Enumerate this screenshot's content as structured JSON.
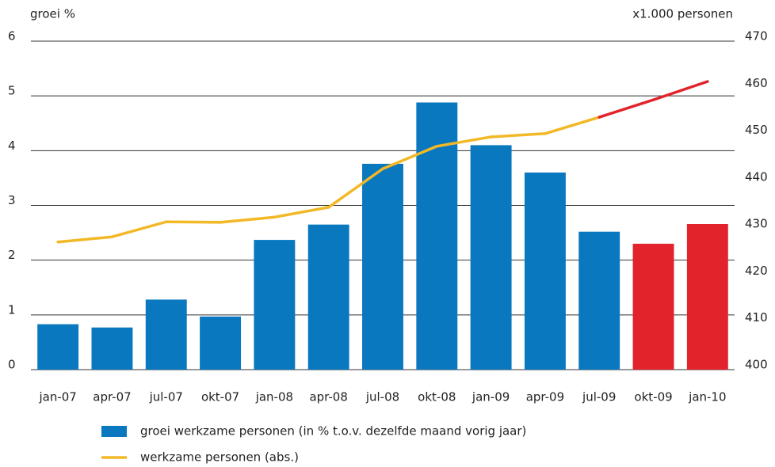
{
  "chart_data": {
    "type": "bar-line",
    "ylabel": "groei %",
    "y2label": "x1.000 personen",
    "categories": [
      "jan-07",
      "apr-07",
      "jul-07",
      "okt-07",
      "jan-08",
      "apr-08",
      "jul-08",
      "okt-08",
      "jan-09",
      "apr-09",
      "jul-09",
      "okt-09",
      "jan-10"
    ],
    "series": [
      {
        "name": "groei werkzame personen (in % t.o.v. dezelfde maand vorig jaar)",
        "type": "bar",
        "color": "#0a78be",
        "colors": [
          "#0a78be",
          "#0a78be",
          "#0a78be",
          "#0a78be",
          "#0a78be",
          "#0a78be",
          "#0a78be",
          "#0a78be",
          "#0a78be",
          "#0a78be",
          "#0a78be",
          "#e3232b",
          "#e3232b"
        ],
        "values": [
          0.83,
          0.77,
          1.28,
          0.97,
          2.37,
          2.65,
          3.76,
          4.88,
          4.1,
          3.6,
          2.52,
          2.3,
          2.66
        ]
      },
      {
        "name": "werkzame personen (abs.)",
        "type": "line",
        "axis": "y2",
        "color": "#f2b826",
        "colors": [
          "#f2b826",
          "#f2b826",
          "#f2b826",
          "#f2b826",
          "#f2b826",
          "#f2b826",
          "#f2b826",
          "#f2b826",
          "#f2b826",
          "#f2b826",
          "#f2b826",
          "#e3232b",
          "#e3232b"
        ],
        "values": [
          427.2,
          428.3,
          431.5,
          431.4,
          432.5,
          434.6,
          442.8,
          447.6,
          449.6,
          450.3,
          453.8,
          457.5,
          461.4
        ]
      }
    ],
    "ylim": [
      0,
      6
    ],
    "yticks": [
      0,
      1,
      2,
      3,
      4,
      5,
      6
    ],
    "y2lim": [
      400,
      470
    ],
    "y2ticks": [
      400,
      410,
      420,
      430,
      440,
      450,
      460,
      470
    ],
    "grid": true
  }
}
